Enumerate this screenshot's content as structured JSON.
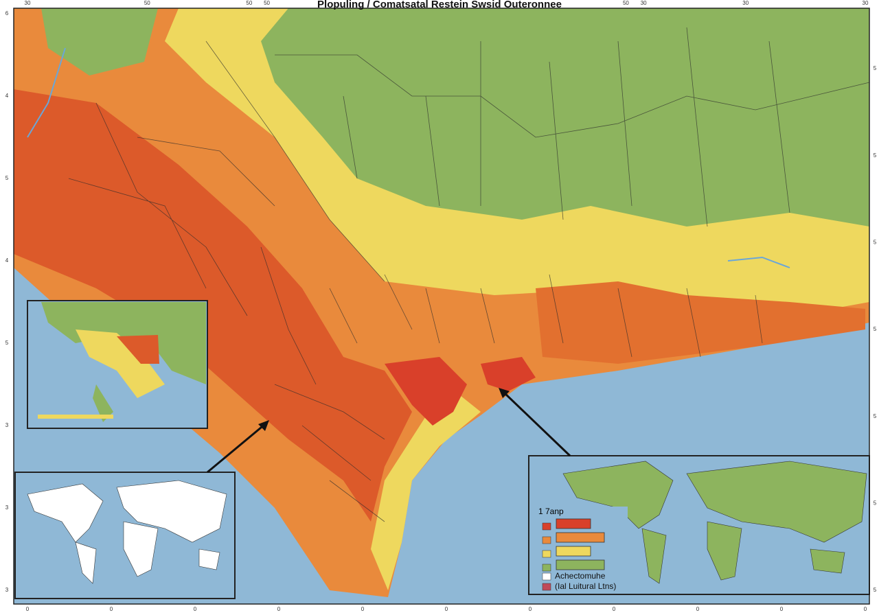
{
  "map": {
    "title": "Plopuling / Comatsatal Restein Swsid Outeronnee",
    "top_labels": [
      "30",
      "50",
      "50",
      "50",
      "30",
      "50",
      "30",
      "30"
    ],
    "left_labels": [
      "6",
      "4",
      "5",
      "4",
      "5",
      "3",
      "3",
      "3"
    ],
    "right_labels": [
      "5",
      "5",
      "5",
      "5",
      "5",
      "5",
      "5"
    ],
    "bottom_labels": [
      "0",
      "0",
      "0",
      "0",
      "0",
      "0",
      "0",
      "0",
      "0",
      "0",
      "0"
    ],
    "legend": {
      "title": "1 7anp",
      "colors": [
        "#d9402a",
        "#e98a3c",
        "#eed85e",
        "#8db45e"
      ],
      "labels": [
        "Achectomuhe",
        "(Ial Luitural Ltns)"
      ],
      "label_colors": [
        "#ffffff",
        "#c04a5a"
      ]
    }
  }
}
